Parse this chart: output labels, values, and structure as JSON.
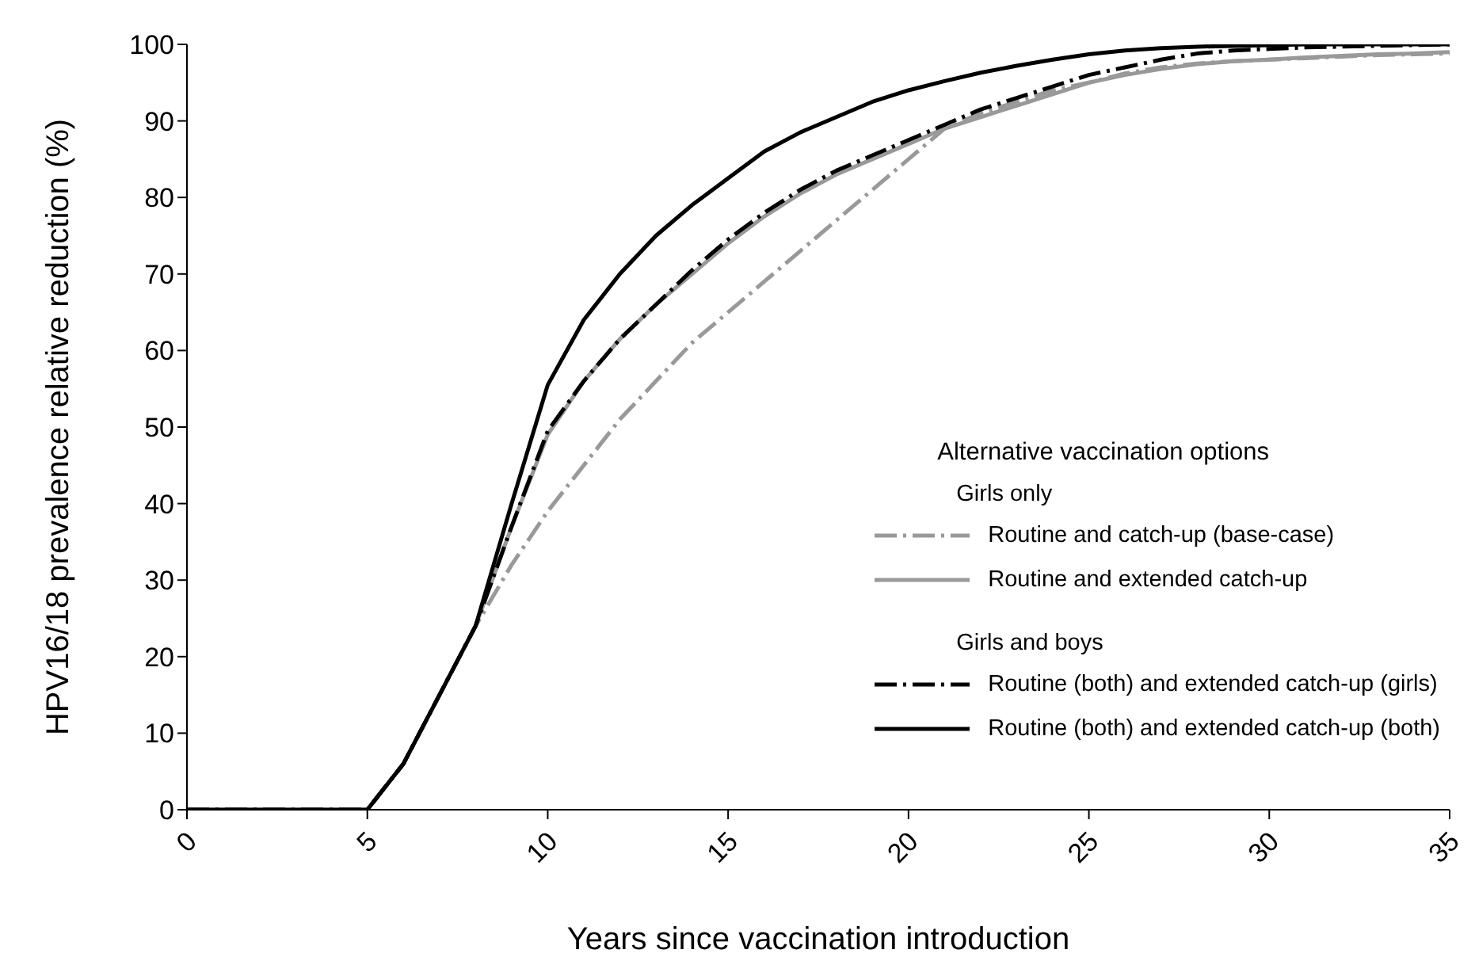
{
  "chart_data": {
    "type": "line",
    "xlabel": "Years since vaccination introduction",
    "ylabel": "HPV16/18 prevalence relative reduction (%)",
    "legend_title": "Alternative vaccination options",
    "annotations": [
      "Girls only",
      "Girls and boys"
    ],
    "x": [
      0,
      1,
      2,
      3,
      4,
      5,
      6,
      7,
      8,
      9,
      10,
      11,
      12,
      13,
      14,
      15,
      16,
      17,
      18,
      19,
      20,
      21,
      22,
      23,
      24,
      25,
      26,
      27,
      28,
      29,
      30,
      31,
      32,
      33,
      34,
      35
    ],
    "series": [
      {
        "name": "Routine and catch-up (base-case)",
        "color": "#999999",
        "line_style": "dashdot",
        "values": [
          0,
          0,
          0,
          0,
          0,
          0,
          6,
          15,
          24,
          32,
          39,
          45,
          51,
          56,
          61,
          65,
          69,
          73,
          77,
          81,
          85,
          89,
          91,
          92.5,
          94,
          95,
          96.2,
          97,
          97.5,
          97.8,
          98,
          98.2,
          98.4,
          98.6,
          98.7,
          98.8
        ]
      },
      {
        "name": "Routine and extended catch-up",
        "color": "#999999",
        "line_style": "solid",
        "values": [
          0,
          0,
          0,
          0,
          0,
          0,
          6,
          15,
          24,
          37,
          49,
          56,
          61.5,
          66,
          70,
          74,
          77.5,
          80.5,
          83,
          85,
          87,
          89,
          90.5,
          92,
          93.5,
          95,
          96,
          96.8,
          97.4,
          97.8,
          98,
          98.3,
          98.5,
          98.7,
          98.8,
          99
        ]
      },
      {
        "name": "Routine (both) and extended catch-up (girls)",
        "color": "#000000",
        "line_style": "dashdot",
        "values": [
          0,
          0,
          0,
          0,
          0,
          0,
          6,
          15,
          24,
          37,
          49.5,
          56,
          61.5,
          66,
          70.5,
          74.5,
          78,
          81,
          83.5,
          85.5,
          87.5,
          89.5,
          91.5,
          93,
          94.5,
          96,
          97,
          98,
          98.8,
          99.2,
          99.4,
          99.6,
          99.7,
          99.8,
          99.9,
          100
        ]
      },
      {
        "name": "Routine (both) and extended catch-up (both)",
        "color": "#000000",
        "line_style": "solid",
        "values": [
          0,
          0,
          0,
          0,
          0,
          0,
          6,
          15,
          24,
          40,
          55.5,
          64,
          70,
          75,
          79,
          82.5,
          86,
          88.5,
          90.5,
          92.5,
          94,
          95.2,
          96.3,
          97.2,
          98,
          98.7,
          99.2,
          99.5,
          99.7,
          99.8,
          99.9,
          100,
          100,
          100,
          100,
          100
        ]
      }
    ],
    "xlim": [
      0,
      35
    ],
    "xticks": [
      0,
      5,
      10,
      15,
      20,
      25,
      30,
      35
    ],
    "ylim": [
      0,
      100
    ],
    "yticks": [
      0,
      10,
      20,
      30,
      40,
      50,
      60,
      70,
      80,
      90,
      100
    ],
    "grid": false,
    "legend": "bottom right",
    "marker": "none"
  }
}
